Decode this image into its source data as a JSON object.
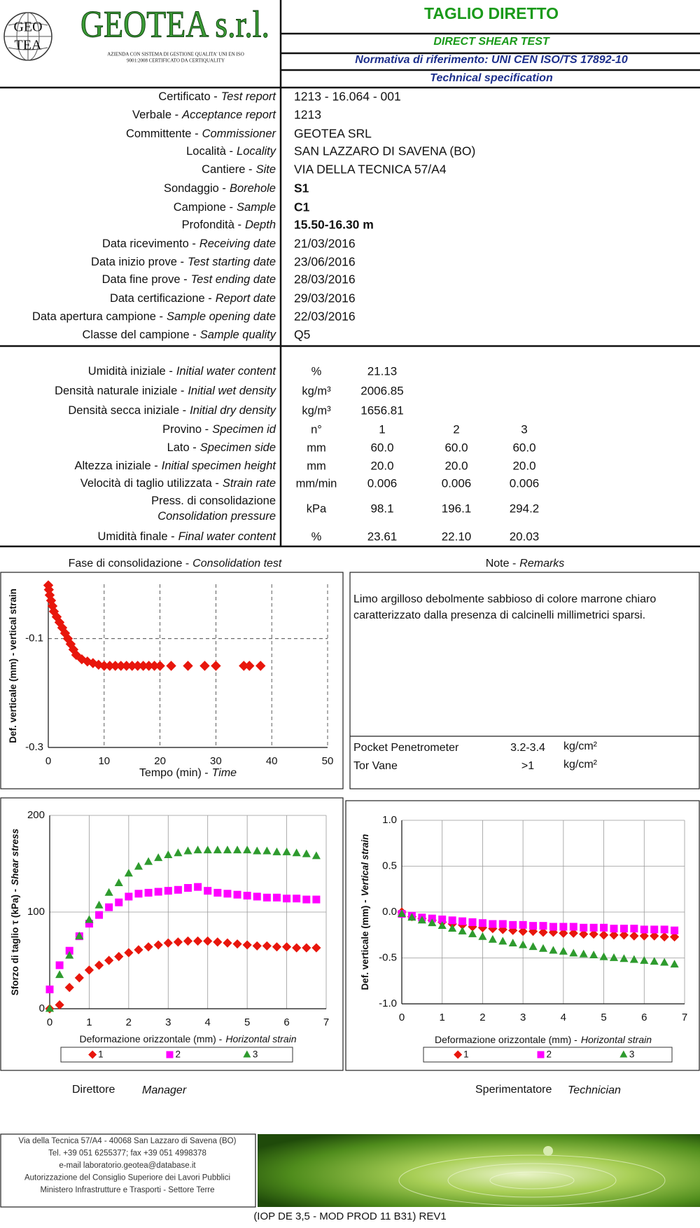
{
  "header": {
    "logo_text": [
      "GEO",
      "TEA"
    ],
    "company": "GEOTEA s.r.l.",
    "company_note": [
      "AZIENDA CON SISTEMA DI GESTIONE QUALITA' UNI EN ISO",
      "9001:2008 CERTIFICATO DA CERTIQUALITY"
    ],
    "title": "TAGLIO DIRETTO",
    "subtitle": "DIRECT SHEAR TEST",
    "standard": "Normativa di riferimento: UNI CEN ISO/TS 17892-10",
    "spec": "Technical specification"
  },
  "report": [
    {
      "it": "Certificato -",
      "en": "Test report",
      "value": "1213 - 16.064 - 001"
    },
    {
      "it": "Verbale -",
      "en": "Acceptance report",
      "value": "1213"
    },
    {
      "it": "Committente -",
      "en": "Commissioner",
      "value": "GEOTEA SRL"
    },
    {
      "it": "Località -",
      "en": "Locality",
      "value": "SAN LAZZARO DI SAVENA (BO)"
    },
    {
      "it": "Cantiere -",
      "en": "Site",
      "value": "VIA DELLA TECNICA 57/A4"
    },
    {
      "it": "Sondaggio -",
      "en": "Borehole",
      "value": "S1",
      "bold": true
    },
    {
      "it": "Campione -",
      "en": "Sample",
      "value": "C1",
      "bold": true
    },
    {
      "it": "Profondità -",
      "en": "Depth",
      "value": "15.50-16.30 m",
      "bold": true
    },
    {
      "it": "Data ricevimento -",
      "en": "Receiving date",
      "value": "21/03/2016"
    },
    {
      "it": "Data inizio prove -",
      "en": "Test starting date",
      "value": "23/06/2016"
    },
    {
      "it": "Data fine prove -",
      "en": "Test ending date",
      "value": "28/03/2016"
    },
    {
      "it": "Data certificazione -",
      "en": "Report date",
      "value": "29/03/2016"
    },
    {
      "it": "Data apertura campione -",
      "en": "Sample opening date",
      "value": "22/03/2016"
    },
    {
      "it": "Classe del campione -",
      "en": "Sample quality",
      "value": "Q5"
    }
  ],
  "properties": [
    {
      "it": "Umidità iniziale -",
      "en": "Initial water content",
      "unit": "%",
      "values": [
        "21.13"
      ]
    },
    {
      "it": "Densità naturale iniziale -",
      "en": "Initial wet density",
      "unit": "kg/m³",
      "values": [
        "2006.85"
      ]
    },
    {
      "it": "Densità secca iniziale -",
      "en": "Initial dry density",
      "unit": "kg/m³",
      "values": [
        "1656.81"
      ]
    },
    {
      "it": "Provino -",
      "en": "Specimen id",
      "unit": "n°",
      "values": [
        "1",
        "2",
        "3"
      ]
    },
    {
      "it": "Lato -",
      "en": "Specimen side",
      "unit": "mm",
      "values": [
        "60.0",
        "60.0",
        "60.0"
      ]
    },
    {
      "it": "Altezza iniziale -",
      "en": "Initial specimen height",
      "unit": "mm",
      "values": [
        "20.0",
        "20.0",
        "20.0"
      ]
    },
    {
      "it": "Velocità di taglio utilizzata -",
      "en": "Strain rate",
      "unit": "mm/min",
      "values": [
        "0.006",
        "0.006",
        "0.006"
      ]
    },
    {
      "it": "Press.  di consolidazione",
      "en": "Consolidation pressure",
      "unit": "kPa",
      "values": [
        "98.1",
        "196.1",
        "294.2"
      ],
      "stacked": true
    },
    {
      "it": "Umidità finale -",
      "en": "Final water content",
      "unit": "%",
      "values": [
        "23.61",
        "22.10",
        "20.03"
      ]
    }
  ],
  "consolidation": {
    "heading_it": "Fase di consolidazione -",
    "heading_en": "Consolidation test",
    "chart": {
      "type": "scatter",
      "xlabel_it": "Tempo (min) -",
      "xlabel_en": "Time",
      "ylabel_it": "Def. verticale (mm) - vertical strain",
      "x": [
        0,
        0.1,
        0.25,
        0.5,
        0.75,
        1,
        1.5,
        2,
        2.5,
        3,
        3.5,
        4,
        4.5,
        5,
        6,
        7,
        8,
        9,
        10,
        11,
        12,
        13,
        14,
        15,
        16,
        17,
        18,
        19,
        20,
        22,
        25,
        28,
        30,
        35,
        36,
        38
      ],
      "values": [
        -0.002,
        -0.01,
        -0.02,
        -0.03,
        -0.04,
        -0.05,
        -0.06,
        -0.07,
        -0.08,
        -0.09,
        -0.1,
        -0.11,
        -0.12,
        -0.13,
        -0.138,
        -0.142,
        -0.145,
        -0.148,
        -0.15,
        -0.15,
        -0.15,
        -0.15,
        -0.15,
        -0.15,
        -0.15,
        -0.15,
        -0.15,
        -0.15,
        -0.15,
        -0.15,
        -0.15,
        -0.15,
        -0.15,
        -0.15,
        -0.15,
        -0.15
      ],
      "color": "#e8160c",
      "marker": "diamond",
      "xlim": [
        0,
        50
      ],
      "xticks": [
        0,
        10,
        20,
        30,
        40,
        50
      ],
      "ylim": [
        -0.3,
        0
      ],
      "yticks": [
        -0.3,
        -0.1
      ],
      "grid": "dashed"
    }
  },
  "remarks": {
    "heading_it": "Note -",
    "heading_en": "Remarks",
    "text": [
      "Limo argilloso debolmente sabbioso di colore marrone chiaro",
      "caratterizzato dalla presenza di calcinelli millimetrici sparsi."
    ],
    "tests": [
      {
        "name": "Pocket Penetrometer",
        "value": "3.2-3.4",
        "unit": "kg/cm²"
      },
      {
        "name": "Tor Vane",
        "value": ">1",
        "unit": "kg/cm²"
      }
    ]
  },
  "shear_chart": {
    "type": "scatter",
    "xlabel_it": "Deformazione orizzontale (mm) -",
    "xlabel_en": "Horizontal strain",
    "ylabel_it": "Sforzo di taglio τ (kPa) -",
    "ylabel_en": "Shear stress",
    "x": [
      0,
      0.25,
      0.5,
      0.75,
      1,
      1.25,
      1.5,
      1.75,
      2,
      2.25,
      2.5,
      2.75,
      3,
      3.25,
      3.5,
      3.75,
      4,
      4.25,
      4.5,
      4.75,
      5,
      5.25,
      5.5,
      5.75,
      6,
      6.25,
      6.5,
      6.75
    ],
    "series": [
      {
        "name": "1",
        "color": "#e8160c",
        "marker": "diamond",
        "values": [
          0,
          4,
          22,
          32,
          40,
          45,
          50,
          54,
          58,
          61,
          64,
          66,
          68,
          69,
          70,
          70,
          70,
          69,
          68,
          67,
          66,
          65,
          65,
          64,
          64,
          63,
          63,
          63
        ]
      },
      {
        "name": "2",
        "color": "#ff00ff",
        "marker": "square",
        "values": [
          20,
          45,
          60,
          75,
          88,
          97,
          105,
          110,
          116,
          119,
          120,
          121,
          122,
          123,
          125,
          126,
          122,
          120,
          119,
          118,
          117,
          116,
          115,
          115,
          114,
          114,
          113,
          113
        ]
      },
      {
        "name": "3",
        "color": "#2e9b2e",
        "marker": "triangle",
        "values": [
          0,
          35,
          55,
          75,
          92,
          107,
          120,
          130,
          140,
          147,
          152,
          156,
          159,
          161,
          163,
          164,
          164,
          164,
          164,
          164,
          164,
          163,
          163,
          162,
          162,
          161,
          160,
          158
        ]
      }
    ],
    "xlim": [
      0,
      7
    ],
    "xticks": [
      0,
      1,
      2,
      3,
      4,
      5,
      6,
      7
    ],
    "ylim": [
      0,
      200
    ],
    "yticks": [
      0,
      100,
      200
    ],
    "grid": "solid",
    "legend": true
  },
  "strain_chart": {
    "type": "scatter",
    "xlabel_it": "Deformazione orizzontale (mm) -",
    "xlabel_en": "Horizontal strain",
    "ylabel_it": "Def. verticale (mm) -",
    "ylabel_en": "Vertical strain",
    "x": [
      0,
      0.25,
      0.5,
      0.75,
      1,
      1.25,
      1.5,
      1.75,
      2,
      2.25,
      2.5,
      2.75,
      3,
      3.25,
      3.5,
      3.75,
      4,
      4.25,
      4.5,
      4.75,
      5,
      5.25,
      5.5,
      5.75,
      6,
      6.25,
      6.5,
      6.75
    ],
    "series": [
      {
        "name": "1",
        "color": "#e8160c",
        "marker": "diamond",
        "values": [
          0,
          -0.05,
          -0.07,
          -0.09,
          -0.11,
          -0.13,
          -0.14,
          -0.16,
          -0.17,
          -0.18,
          -0.19,
          -0.2,
          -0.21,
          -0.21,
          -0.22,
          -0.22,
          -0.23,
          -0.23,
          -0.24,
          -0.24,
          -0.25,
          -0.25,
          -0.25,
          -0.26,
          -0.26,
          -0.26,
          -0.27,
          -0.27
        ]
      },
      {
        "name": "2",
        "color": "#ff00ff",
        "marker": "square",
        "values": [
          -0.02,
          -0.04,
          -0.06,
          -0.07,
          -0.08,
          -0.09,
          -0.1,
          -0.11,
          -0.12,
          -0.13,
          -0.13,
          -0.14,
          -0.14,
          -0.15,
          -0.15,
          -0.16,
          -0.16,
          -0.16,
          -0.17,
          -0.17,
          -0.17,
          -0.18,
          -0.18,
          -0.18,
          -0.19,
          -0.19,
          -0.19,
          -0.2
        ]
      },
      {
        "name": "3",
        "color": "#2e9b2e",
        "marker": "triangle",
        "values": [
          -0.02,
          -0.06,
          -0.09,
          -0.12,
          -0.15,
          -0.18,
          -0.21,
          -0.24,
          -0.27,
          -0.3,
          -0.32,
          -0.34,
          -0.36,
          -0.38,
          -0.4,
          -0.42,
          -0.43,
          -0.45,
          -0.46,
          -0.47,
          -0.49,
          -0.5,
          -0.51,
          -0.52,
          -0.53,
          -0.54,
          -0.55,
          -0.57
        ]
      }
    ],
    "xlim": [
      0,
      7
    ],
    "xticks": [
      0,
      1,
      2,
      3,
      4,
      5,
      6,
      7
    ],
    "ylim": [
      -1,
      1
    ],
    "yticks": [
      {
        "value": -1,
        "label": "-1.0"
      },
      -0.5,
      {
        "value": 0,
        "label": "0.0"
      },
      0.5,
      {
        "value": 1,
        "label": "1.0"
      }
    ],
    "grid": "solid",
    "legend": true
  },
  "signatures": [
    {
      "it": "Direttore",
      "en": "Manager"
    },
    {
      "it": "Sperimentatore",
      "en": "Technician"
    }
  ],
  "footer": {
    "lines": [
      "Via della Tecnica 57/A4 - 40068 San Lazzaro di Savena (BO)",
      "Tel. +39 051 6255377; fax +39 051 4998378",
      "e-mail laboratorio.geotea@database.it",
      "Autorizzazione del Consiglio Superiore dei Lavori Pubblici",
      "Ministero Infrastrutture e Trasporti - Settore Terre"
    ],
    "code": "(IOP DE 3,5 - MOD PROD 11 B31) REV1"
  }
}
